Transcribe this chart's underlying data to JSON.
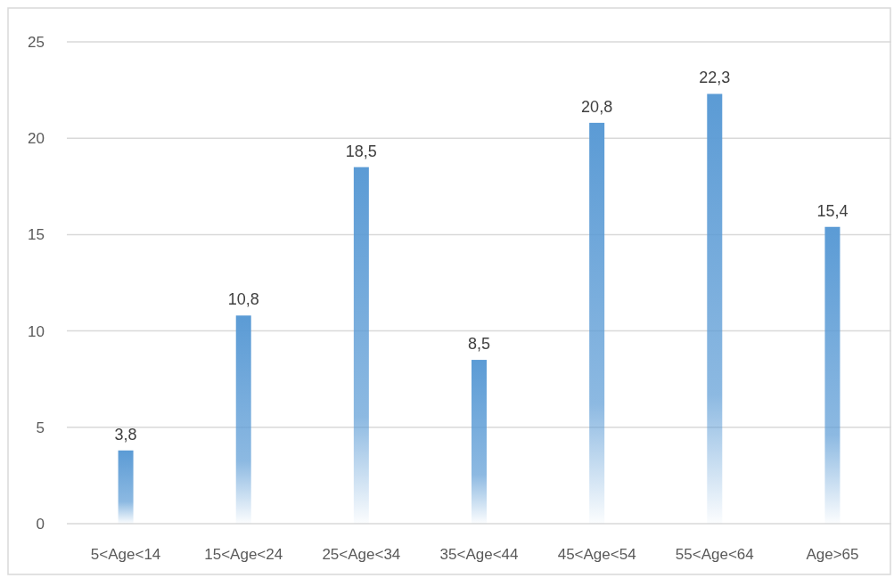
{
  "chart_data": {
    "type": "bar",
    "categories": [
      "5<Age<14",
      "15<Age<24",
      "25<Age<34",
      "35<Age<44",
      "45<Age<54",
      "55<Age<64",
      "Age>65"
    ],
    "values": [
      3.8,
      10.8,
      18.5,
      8.5,
      20.8,
      22.3,
      15.4
    ],
    "value_labels": [
      "3,8",
      "10,8",
      "18,5",
      "8,5",
      "20,8",
      "22,3",
      "15,4"
    ],
    "color": "#5b9bd5",
    "ylim": [
      0,
      25
    ],
    "yticks": [
      0,
      5,
      10,
      15,
      20,
      25
    ],
    "grid": "y"
  }
}
